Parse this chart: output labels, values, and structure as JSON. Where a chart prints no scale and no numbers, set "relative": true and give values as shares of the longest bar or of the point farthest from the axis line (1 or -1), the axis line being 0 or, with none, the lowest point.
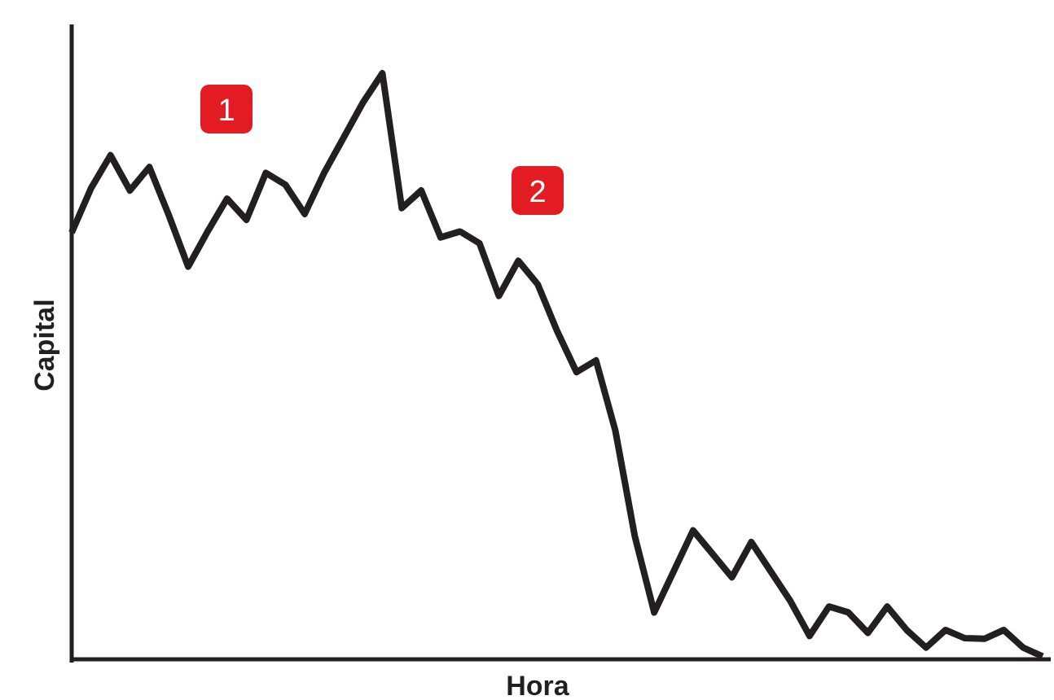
{
  "chart_data": {
    "type": "line",
    "relative": true,
    "xlabel": "Hora",
    "ylabel": "Capital",
    "annotations": [
      "1",
      "2"
    ],
    "categories": [
      null,
      null,
      null,
      null,
      null,
      null,
      null,
      null,
      null,
      null,
      null,
      null,
      null,
      null,
      null,
      null,
      null,
      null,
      null,
      null,
      null,
      null,
      null,
      null,
      null,
      null,
      null,
      null,
      null,
      null,
      null,
      null,
      null,
      null,
      null,
      null,
      null,
      null,
      null,
      null,
      null,
      null,
      null,
      null,
      null,
      null,
      null,
      null,
      null,
      null,
      null
    ],
    "series": [
      {
        "color": "#231f20",
        "values": [
          0.728,
          0.804,
          0.86,
          0.8,
          0.84,
          0.758,
          0.67,
          0.73,
          0.786,
          0.75,
          0.83,
          0.81,
          0.76,
          0.83,
          0.89,
          0.95,
          1.0,
          0.77,
          0.8,
          0.72,
          0.73,
          0.71,
          0.62,
          0.68,
          0.64,
          0.56,
          0.49,
          0.51,
          0.39,
          0.21,
          0.08,
          0.15,
          0.22,
          0.18,
          0.14,
          0.2,
          0.15,
          0.1,
          0.04,
          0.09,
          0.08,
          0.045,
          0.09,
          0.05,
          0.02,
          0.05,
          0.036,
          0.035,
          0.05,
          0.02,
          0.005
        ]
      }
    ],
    "marker": "none",
    "line_style": "solid"
  }
}
